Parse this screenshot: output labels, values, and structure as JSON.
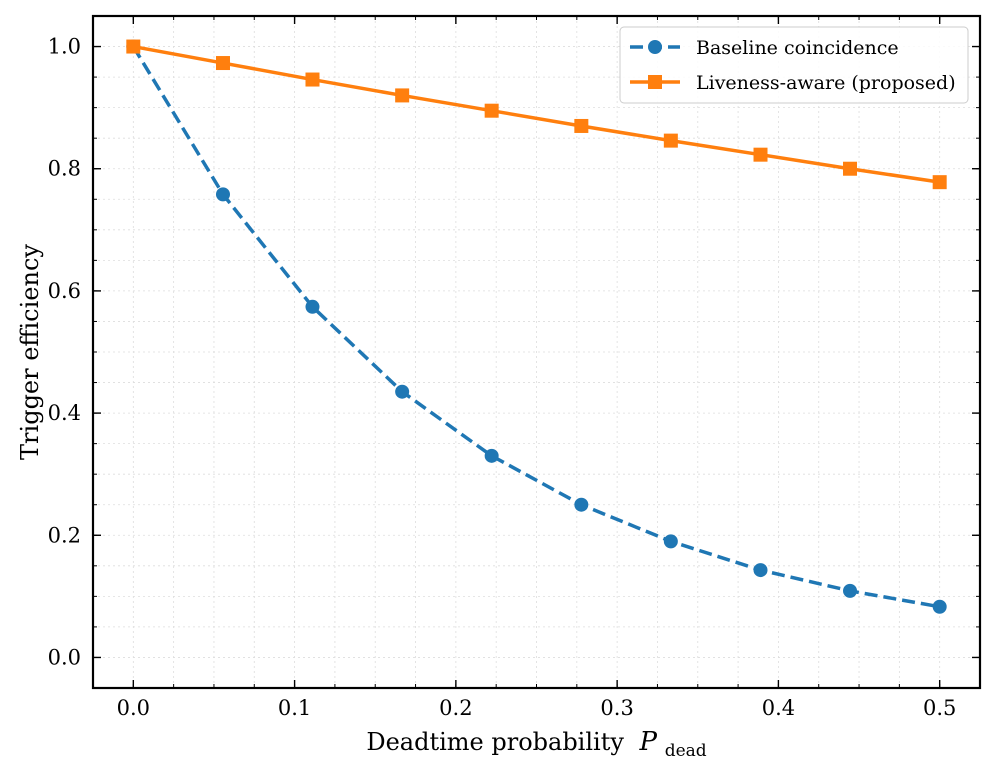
{
  "chart_data": {
    "type": "line",
    "title": "",
    "xlabel": "Deadtime probability",
    "xlabel_symbol": "P",
    "xlabel_subscript": "dead",
    "ylabel": "Trigger efficiency",
    "xlim": [
      -0.025,
      0.525
    ],
    "ylim": [
      -0.05,
      1.05
    ],
    "xticks": [
      0.0,
      0.1,
      0.2,
      0.3,
      0.4,
      0.5
    ],
    "xtick_labels": [
      "0.0",
      "0.1",
      "0.2",
      "0.3",
      "0.4",
      "0.5"
    ],
    "yticks": [
      0.0,
      0.2,
      0.4,
      0.6,
      0.8,
      1.0
    ],
    "ytick_labels": [
      "0.0",
      "0.2",
      "0.4",
      "0.6",
      "0.8",
      "1.0"
    ],
    "grid": true,
    "legend_position": "top-right",
    "x": [
      0.0,
      0.0556,
      0.1111,
      0.1667,
      0.2222,
      0.2778,
      0.3333,
      0.3889,
      0.4444,
      0.5
    ],
    "series": [
      {
        "name": "Baseline coincidence",
        "color": "#1f77b4",
        "marker": "circle",
        "linestyle": "dashed",
        "values": [
          1.0,
          0.758,
          0.574,
          0.435,
          0.33,
          0.25,
          0.19,
          0.143,
          0.109,
          0.083
        ]
      },
      {
        "name": "Liveness-aware (proposed)",
        "color": "#ff7f0e",
        "marker": "square",
        "linestyle": "solid",
        "values": [
          1.0,
          0.973,
          0.946,
          0.92,
          0.895,
          0.87,
          0.846,
          0.823,
          0.8,
          0.778
        ]
      }
    ]
  }
}
